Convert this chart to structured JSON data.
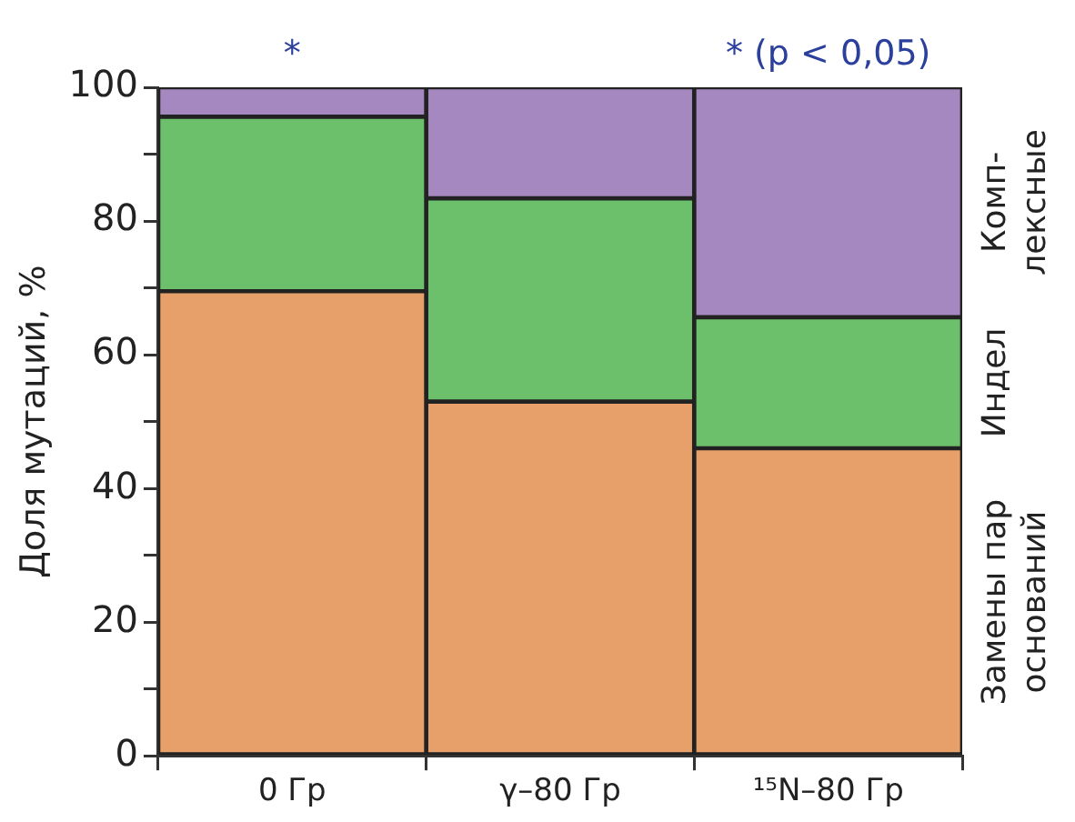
{
  "chart_data": {
    "type": "bar",
    "stacked": true,
    "ylabel": "Доля мутаций, %",
    "categories": [
      "0 Гр",
      "γ–80 Гр",
      "¹⁵N–80 Гр"
    ],
    "series": [
      {
        "name": "Замены пар оснований",
        "color": "#e8a06a",
        "values": [
          69.5,
          53,
          46
        ]
      },
      {
        "name": "Индел",
        "color": "#6cc06c",
        "values": [
          26.1,
          30.4,
          19.6
        ]
      },
      {
        "name": "Комп-лексные",
        "color": "#a688c0",
        "values": [
          4.4,
          16.6,
          34.4
        ]
      }
    ],
    "ylim": [
      0,
      100
    ],
    "yticks": [
      0,
      {
        "value": 10,
        "label": null
      },
      20,
      {
        "value": 30,
        "label": null
      },
      40,
      {
        "value": 50,
        "label": null
      },
      60,
      {
        "value": 70,
        "label": null
      },
      80,
      {
        "value": 90,
        "label": null
      },
      100
    ],
    "annotations": [
      {
        "text": "*",
        "x": "0 Гр",
        "y": 100
      },
      {
        "text": "* (p < 0,05)",
        "x": "¹⁵N–80 Гр",
        "y": 100
      }
    ],
    "grid": false,
    "legend": false
  }
}
